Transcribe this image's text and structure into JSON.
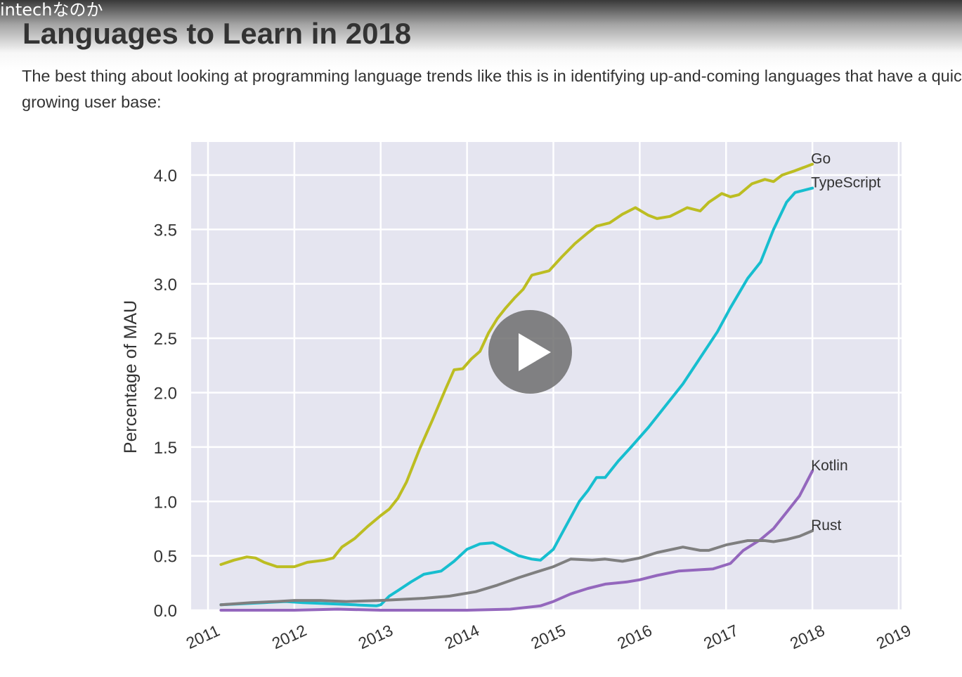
{
  "video": {
    "title": "intechなのか",
    "play_icon": "play-icon"
  },
  "article": {
    "heading": "Languages to Learn in 2018",
    "paragraph": "The best thing about looking at programming language trends like this is in identifying up-and-coming languages that have a quickly growing user base:"
  },
  "chart_data": {
    "type": "line",
    "title": "",
    "xlabel": "",
    "ylabel": "Percentage of MAU",
    "xlim": [
      2011,
      2019
    ],
    "ylim": [
      0.0,
      4.3
    ],
    "x_ticks": [
      "2011",
      "2012",
      "2013",
      "2014",
      "2015",
      "2016",
      "2017",
      "2018",
      "2019"
    ],
    "y_ticks": [
      "0.0",
      "0.5",
      "1.0",
      "1.5",
      "2.0",
      "2.5",
      "3.0",
      "3.5",
      "4.0"
    ],
    "background_color": "#e5e5f0",
    "grid": true,
    "legend": "none",
    "series": [
      {
        "name": "Go",
        "color": "#bcbd22",
        "points": [
          [
            2011.15,
            0.42
          ],
          [
            2011.3,
            0.46
          ],
          [
            2011.45,
            0.49
          ],
          [
            2011.55,
            0.48
          ],
          [
            2011.65,
            0.44
          ],
          [
            2011.8,
            0.4
          ],
          [
            2012.0,
            0.4
          ],
          [
            2012.15,
            0.44
          ],
          [
            2012.35,
            0.46
          ],
          [
            2012.45,
            0.48
          ],
          [
            2012.55,
            0.58
          ],
          [
            2012.7,
            0.66
          ],
          [
            2012.85,
            0.77
          ],
          [
            2013.0,
            0.87
          ],
          [
            2013.1,
            0.93
          ],
          [
            2013.2,
            1.03
          ],
          [
            2013.3,
            1.18
          ],
          [
            2013.45,
            1.48
          ],
          [
            2013.6,
            1.75
          ],
          [
            2013.75,
            2.03
          ],
          [
            2013.85,
            2.21
          ],
          [
            2013.95,
            2.22
          ],
          [
            2014.05,
            2.31
          ],
          [
            2014.15,
            2.38
          ],
          [
            2014.25,
            2.55
          ],
          [
            2014.35,
            2.68
          ],
          [
            2014.45,
            2.78
          ],
          [
            2014.55,
            2.87
          ],
          [
            2014.65,
            2.95
          ],
          [
            2014.75,
            3.08
          ],
          [
            2014.85,
            3.1
          ],
          [
            2014.95,
            3.12
          ],
          [
            2015.1,
            3.25
          ],
          [
            2015.25,
            3.37
          ],
          [
            2015.4,
            3.47
          ],
          [
            2015.5,
            3.53
          ],
          [
            2015.65,
            3.56
          ],
          [
            2015.8,
            3.64
          ],
          [
            2015.95,
            3.7
          ],
          [
            2016.1,
            3.63
          ],
          [
            2016.2,
            3.6
          ],
          [
            2016.35,
            3.62
          ],
          [
            2016.45,
            3.66
          ],
          [
            2016.55,
            3.7
          ],
          [
            2016.7,
            3.67
          ],
          [
            2016.8,
            3.75
          ],
          [
            2016.95,
            3.83
          ],
          [
            2017.05,
            3.8
          ],
          [
            2017.15,
            3.82
          ],
          [
            2017.3,
            3.92
          ],
          [
            2017.45,
            3.96
          ],
          [
            2017.55,
            3.94
          ],
          [
            2017.65,
            4.0
          ],
          [
            2017.8,
            4.04
          ],
          [
            2018.0,
            4.1
          ]
        ]
      },
      {
        "name": "TypeScript",
        "color": "#17becf",
        "points": [
          [
            2011.15,
            0.05
          ],
          [
            2011.4,
            0.06
          ],
          [
            2011.65,
            0.07
          ],
          [
            2011.9,
            0.08
          ],
          [
            2012.1,
            0.07
          ],
          [
            2012.4,
            0.06
          ],
          [
            2012.7,
            0.05
          ],
          [
            2012.95,
            0.04
          ],
          [
            2013.0,
            0.05
          ],
          [
            2013.1,
            0.13
          ],
          [
            2013.2,
            0.18
          ],
          [
            2013.35,
            0.26
          ],
          [
            2013.5,
            0.33
          ],
          [
            2013.7,
            0.36
          ],
          [
            2013.85,
            0.45
          ],
          [
            2014.0,
            0.56
          ],
          [
            2014.15,
            0.61
          ],
          [
            2014.3,
            0.62
          ],
          [
            2014.45,
            0.56
          ],
          [
            2014.6,
            0.5
          ],
          [
            2014.75,
            0.47
          ],
          [
            2014.85,
            0.46
          ],
          [
            2015.0,
            0.56
          ],
          [
            2015.15,
            0.78
          ],
          [
            2015.3,
            1.0
          ],
          [
            2015.4,
            1.1
          ],
          [
            2015.5,
            1.22
          ],
          [
            2015.6,
            1.22
          ],
          [
            2015.75,
            1.37
          ],
          [
            2015.9,
            1.5
          ],
          [
            2016.1,
            1.68
          ],
          [
            2016.3,
            1.88
          ],
          [
            2016.5,
            2.08
          ],
          [
            2016.7,
            2.32
          ],
          [
            2016.9,
            2.56
          ],
          [
            2017.05,
            2.78
          ],
          [
            2017.25,
            3.05
          ],
          [
            2017.4,
            3.2
          ],
          [
            2017.55,
            3.5
          ],
          [
            2017.7,
            3.75
          ],
          [
            2017.8,
            3.84
          ],
          [
            2017.9,
            3.86
          ],
          [
            2018.0,
            3.88
          ]
        ]
      },
      {
        "name": "Kotlin",
        "color": "#9467bd",
        "points": [
          [
            2011.15,
            0.0
          ],
          [
            2012.0,
            0.0
          ],
          [
            2012.5,
            0.01
          ],
          [
            2013.0,
            0.0
          ],
          [
            2013.5,
            0.0
          ],
          [
            2014.0,
            0.0
          ],
          [
            2014.5,
            0.01
          ],
          [
            2014.85,
            0.04
          ],
          [
            2015.0,
            0.08
          ],
          [
            2015.2,
            0.15
          ],
          [
            2015.4,
            0.2
          ],
          [
            2015.6,
            0.24
          ],
          [
            2015.85,
            0.26
          ],
          [
            2016.0,
            0.28
          ],
          [
            2016.2,
            0.32
          ],
          [
            2016.45,
            0.36
          ],
          [
            2016.65,
            0.37
          ],
          [
            2016.85,
            0.38
          ],
          [
            2017.05,
            0.43
          ],
          [
            2017.2,
            0.55
          ],
          [
            2017.4,
            0.65
          ],
          [
            2017.55,
            0.75
          ],
          [
            2017.7,
            0.9
          ],
          [
            2017.85,
            1.05
          ],
          [
            2018.0,
            1.28
          ]
        ]
      },
      {
        "name": "Rust",
        "color": "#7f7f7f",
        "points": [
          [
            2011.15,
            0.05
          ],
          [
            2011.5,
            0.07
          ],
          [
            2011.8,
            0.08
          ],
          [
            2012.0,
            0.09
          ],
          [
            2012.3,
            0.09
          ],
          [
            2012.6,
            0.08
          ],
          [
            2013.0,
            0.09
          ],
          [
            2013.5,
            0.11
          ],
          [
            2013.8,
            0.13
          ],
          [
            2014.1,
            0.17
          ],
          [
            2014.35,
            0.23
          ],
          [
            2014.6,
            0.3
          ],
          [
            2014.8,
            0.35
          ],
          [
            2015.0,
            0.4
          ],
          [
            2015.2,
            0.47
          ],
          [
            2015.45,
            0.46
          ],
          [
            2015.6,
            0.47
          ],
          [
            2015.8,
            0.45
          ],
          [
            2016.0,
            0.48
          ],
          [
            2016.2,
            0.53
          ],
          [
            2016.5,
            0.58
          ],
          [
            2016.7,
            0.55
          ],
          [
            2016.8,
            0.55
          ],
          [
            2017.0,
            0.6
          ],
          [
            2017.25,
            0.64
          ],
          [
            2017.45,
            0.64
          ],
          [
            2017.55,
            0.63
          ],
          [
            2017.7,
            0.65
          ],
          [
            2017.85,
            0.68
          ],
          [
            2018.0,
            0.73
          ]
        ]
      }
    ]
  }
}
